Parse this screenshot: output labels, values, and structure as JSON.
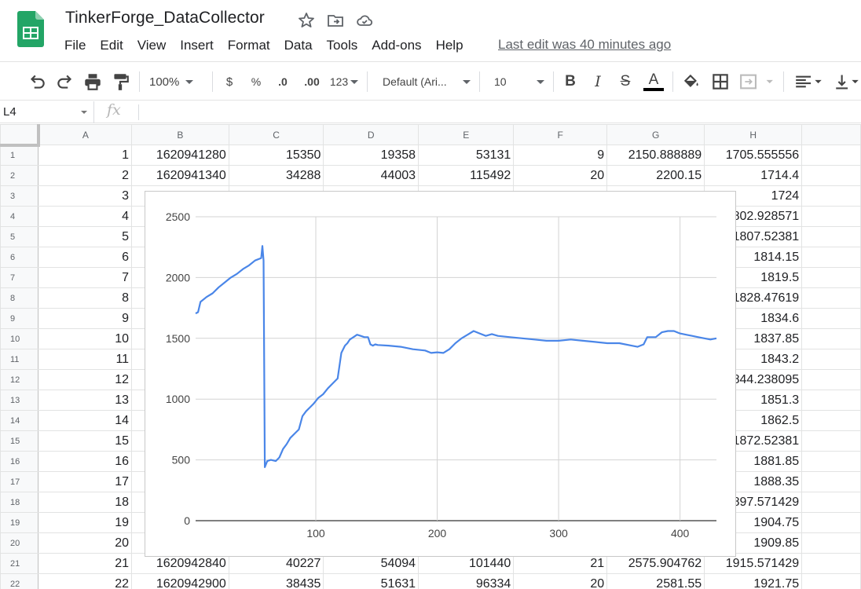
{
  "app": {
    "doc_title": "TinkerForge_DataCollector",
    "last_edit": "Last edit was 40 minutes ago",
    "menu": [
      "File",
      "Edit",
      "View",
      "Insert",
      "Format",
      "Data",
      "Tools",
      "Add-ons",
      "Help"
    ]
  },
  "toolbar": {
    "zoom": "100%",
    "currency": "$",
    "percent": "%",
    "dec_decrease": ".0",
    "dec_increase": ".00",
    "more_formats": "123",
    "font": "Default (Ari...",
    "font_size": "10",
    "bold": "B",
    "italic": "I",
    "strike": "S",
    "text_color": "A"
  },
  "formula_bar": {
    "cell_ref": "L4",
    "fx": "fx",
    "formula": ""
  },
  "columns": [
    "A",
    "B",
    "C",
    "D",
    "E",
    "F",
    "G",
    "H"
  ],
  "rows": [
    {
      "n": "1",
      "cells": [
        "1",
        "1620941280",
        "15350",
        "19358",
        "53131",
        "9",
        "2150.888889",
        "1705.555556"
      ]
    },
    {
      "n": "2",
      "cells": [
        "2",
        "1620941340",
        "34288",
        "44003",
        "115492",
        "20",
        "2200.15",
        "1714.4"
      ]
    },
    {
      "n": "3",
      "cells": [
        "3",
        "",
        "",
        "",
        "",
        "",
        "",
        "1724"
      ]
    },
    {
      "n": "4",
      "cells": [
        "4",
        "",
        "",
        "",
        "",
        "",
        "",
        "1802.928571"
      ]
    },
    {
      "n": "5",
      "cells": [
        "5",
        "",
        "",
        "",
        "",
        "",
        "",
        "1807.52381"
      ]
    },
    {
      "n": "6",
      "cells": [
        "6",
        "",
        "",
        "",
        "",
        "",
        "",
        "1814.15"
      ]
    },
    {
      "n": "7",
      "cells": [
        "7",
        "",
        "",
        "",
        "",
        "",
        "",
        "1819.5"
      ]
    },
    {
      "n": "8",
      "cells": [
        "8",
        "",
        "",
        "",
        "",
        "",
        "",
        "1828.47619"
      ]
    },
    {
      "n": "9",
      "cells": [
        "9",
        "",
        "",
        "",
        "",
        "",
        "",
        "1834.6"
      ]
    },
    {
      "n": "10",
      "cells": [
        "10",
        "",
        "",
        "",
        "",
        "",
        "",
        "1837.85"
      ]
    },
    {
      "n": "11",
      "cells": [
        "11",
        "",
        "",
        "",
        "",
        "",
        "",
        "1843.2"
      ]
    },
    {
      "n": "12",
      "cells": [
        "12",
        "",
        "",
        "",
        "",
        "",
        "",
        "1844.238095"
      ]
    },
    {
      "n": "13",
      "cells": [
        "13",
        "",
        "",
        "",
        "",
        "",
        "",
        "1851.3"
      ]
    },
    {
      "n": "14",
      "cells": [
        "14",
        "",
        "",
        "",
        "",
        "",
        "",
        "1862.5"
      ]
    },
    {
      "n": "15",
      "cells": [
        "15",
        "",
        "",
        "",
        "",
        "",
        "",
        "1872.52381"
      ]
    },
    {
      "n": "16",
      "cells": [
        "16",
        "",
        "",
        "",
        "",
        "",
        "",
        "1881.85"
      ]
    },
    {
      "n": "17",
      "cells": [
        "17",
        "",
        "",
        "",
        "",
        "",
        "",
        "1888.35"
      ]
    },
    {
      "n": "18",
      "cells": [
        "18",
        "",
        "",
        "",
        "",
        "",
        "",
        "1897.571429"
      ]
    },
    {
      "n": "19",
      "cells": [
        "19",
        "",
        "",
        "",
        "",
        "",
        "",
        "1904.75"
      ]
    },
    {
      "n": "20",
      "cells": [
        "20",
        "",
        "",
        "",
        "",
        "",
        "",
        "1909.85"
      ]
    },
    {
      "n": "21",
      "cells": [
        "21",
        "1620942840",
        "40227",
        "54094",
        "101440",
        "21",
        "2575.904762",
        "1915.571429"
      ]
    },
    {
      "n": "22",
      "cells": [
        "22",
        "1620942900",
        "38435",
        "51631",
        "96334",
        "20",
        "2581.55",
        "1921.75"
      ]
    }
  ],
  "colors": {
    "series": "#4a86e8",
    "gridline": "#d3d3d3",
    "sheets_green": "#23a566"
  },
  "chart_data": {
    "type": "line",
    "title": "",
    "xlabel": "",
    "ylabel": "",
    "xlim": [
      1,
      430
    ],
    "ylim": [
      0,
      2500
    ],
    "x_ticks": [
      100,
      200,
      300,
      400
    ],
    "y_ticks": [
      0,
      500,
      1000,
      1500,
      2000,
      2500
    ],
    "grid": true,
    "legend": "none",
    "series": [
      {
        "x": [
          1,
          3,
          5,
          10,
          15,
          20,
          25,
          30,
          35,
          40,
          45,
          50,
          55,
          56,
          57,
          58,
          60,
          63,
          67,
          70,
          73,
          76,
          79,
          83,
          86,
          89,
          92,
          95,
          98,
          102,
          106,
          110,
          114,
          118,
          121,
          124,
          126,
          128,
          131,
          134,
          137,
          140,
          143,
          145,
          147,
          149,
          151,
          160,
          170,
          180,
          190,
          195,
          200,
          205,
          210,
          215,
          220,
          225,
          230,
          235,
          240,
          245,
          250,
          260,
          270,
          280,
          290,
          300,
          310,
          320,
          330,
          340,
          350,
          360,
          365,
          370,
          373,
          375,
          380,
          385,
          390,
          395,
          400,
          405,
          410,
          415,
          420,
          425,
          430
        ],
        "y": [
          1705,
          1715,
          1800,
          1840,
          1870,
          1920,
          1960,
          2000,
          2030,
          2070,
          2100,
          2140,
          2160,
          2260,
          2140,
          440,
          490,
          500,
          490,
          520,
          590,
          630,
          680,
          720,
          750,
          860,
          900,
          930,
          960,
          1010,
          1040,
          1090,
          1130,
          1170,
          1380,
          1440,
          1460,
          1490,
          1510,
          1530,
          1520,
          1510,
          1510,
          1450,
          1440,
          1450,
          1445,
          1440,
          1430,
          1410,
          1400,
          1380,
          1385,
          1380,
          1410,
          1460,
          1500,
          1530,
          1560,
          1540,
          1520,
          1535,
          1520,
          1510,
          1500,
          1490,
          1480,
          1480,
          1490,
          1480,
          1470,
          1460,
          1460,
          1440,
          1430,
          1450,
          1510,
          1510,
          1510,
          1550,
          1560,
          1560,
          1540,
          1530,
          1520,
          1510,
          1500,
          1490,
          1500
        ]
      }
    ]
  }
}
